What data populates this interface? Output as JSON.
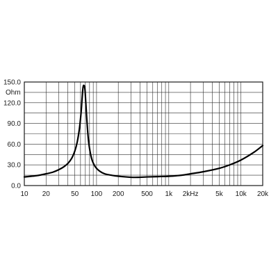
{
  "chart_data": {
    "type": "line",
    "title": "",
    "xlabel": "",
    "ylabel": "Ohm",
    "x_scale": "log",
    "xlim": [
      10,
      20000
    ],
    "ylim": [
      0,
      150
    ],
    "grid": true,
    "legend": "none",
    "y_ticks": [
      {
        "value": 0,
        "label": "0.0"
      },
      {
        "value": 30,
        "label": "30.0"
      },
      {
        "value": 60,
        "label": "60.0"
      },
      {
        "value": 90,
        "label": "90.0"
      },
      {
        "value": 120,
        "label": "120.0"
      },
      {
        "value": 150,
        "label": "150.0"
      }
    ],
    "x_ticks": [
      {
        "value": 10,
        "label": "10"
      },
      {
        "value": 20,
        "label": "20"
      },
      {
        "value": 50,
        "label": "50"
      },
      {
        "value": 100,
        "label": "100"
      },
      {
        "value": 200,
        "label": "200"
      },
      {
        "value": 500,
        "label": "500"
      },
      {
        "value": 1000,
        "label": "1k"
      },
      {
        "value": 2000,
        "label": "2kHz"
      },
      {
        "value": 5000,
        "label": "5k"
      },
      {
        "value": 10000,
        "label": "10k"
      },
      {
        "value": 20000,
        "label": "20k"
      }
    ],
    "series": [
      {
        "x": [
          10,
          15,
          20,
          25,
          30,
          35,
          40,
          45,
          50,
          54,
          58,
          61,
          63,
          65,
          67,
          69,
          71,
          74,
          78,
          85,
          95,
          110,
          130,
          160,
          200,
          300,
          400,
          500,
          700,
          1000,
          1500,
          2000,
          3000,
          5000,
          7000,
          10000,
          15000,
          20000
        ],
        "y": [
          12.5,
          14.5,
          17,
          19.5,
          23,
          27,
          32,
          39,
          50,
          63,
          83,
          105,
          125,
          142,
          145,
          140,
          120,
          90,
          62,
          40,
          28,
          21,
          17,
          15,
          13.5,
          12,
          12,
          12.5,
          13,
          13.5,
          15,
          17,
          20,
          25,
          30,
          37,
          48,
          58
        ]
      }
    ],
    "colors": {
      "line": "#000000",
      "grid": "#2b2b2b",
      "text": "#1a1a1a"
    }
  }
}
